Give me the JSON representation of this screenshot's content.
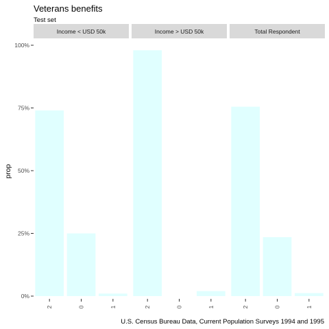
{
  "chart_data": {
    "type": "bar",
    "title": "Veterans benefits",
    "subtitle": "Test set",
    "ylabel": "prop",
    "xlabel": "",
    "caption": "U.S. Census Bureau Data, Current Population Surveys 1994 and 1995",
    "ylim": [
      0,
      1
    ],
    "yticks": [
      0,
      0.25,
      0.5,
      0.75,
      1.0
    ],
    "ytick_labels": [
      "0%",
      "25%",
      "50%",
      "75%",
      "100%"
    ],
    "categories": [
      "2",
      "0",
      "1"
    ],
    "bar_color": "#e0ffff",
    "strip_color": "#d9d9d9",
    "grid": false,
    "facets": [
      {
        "label": "Income < USD 50k",
        "values": [
          0.74,
          0.25,
          0.01
        ]
      },
      {
        "label": "Income > USD 50k",
        "values": [
          0.98,
          0.0,
          0.02
        ]
      },
      {
        "label": "Total Respondent",
        "values": [
          0.755,
          0.235,
          0.012
        ]
      }
    ]
  }
}
